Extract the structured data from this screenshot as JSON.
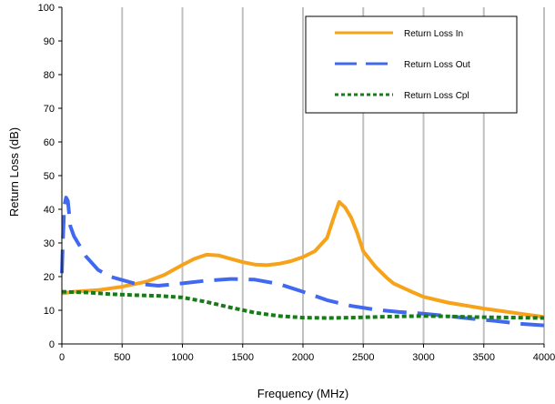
{
  "chart_data": {
    "type": "line",
    "title": "",
    "xlabel": "Frequency (MHz)",
    "ylabel": "Return Loss (dB)",
    "xlim": [
      0,
      4000
    ],
    "ylim": [
      0,
      100
    ],
    "xticks": [
      0,
      500,
      1000,
      1500,
      2000,
      2500,
      3000,
      3500,
      4000
    ],
    "yticks": [
      0,
      10,
      20,
      30,
      40,
      50,
      60,
      70,
      80,
      90,
      100
    ],
    "grid": "vertical",
    "legend_position": "top-right",
    "series": [
      {
        "name": "Return Loss In",
        "color": "#f7a21b",
        "dash": "solid",
        "points": [
          [
            0,
            15
          ],
          [
            100,
            15.5
          ],
          [
            300,
            16
          ],
          [
            500,
            17
          ],
          [
            700,
            18.5
          ],
          [
            850,
            20.5
          ],
          [
            1000,
            23.5
          ],
          [
            1100,
            25.3
          ],
          [
            1200,
            26.5
          ],
          [
            1300,
            26.3
          ],
          [
            1400,
            25.3
          ],
          [
            1500,
            24.3
          ],
          [
            1600,
            23.6
          ],
          [
            1700,
            23.4
          ],
          [
            1800,
            23.8
          ],
          [
            1900,
            24.6
          ],
          [
            2000,
            25.8
          ],
          [
            2100,
            27.6
          ],
          [
            2200,
            31.5
          ],
          [
            2250,
            37
          ],
          [
            2300,
            42.2
          ],
          [
            2350,
            40.5
          ],
          [
            2400,
            37.5
          ],
          [
            2450,
            33
          ],
          [
            2500,
            27.5
          ],
          [
            2600,
            23
          ],
          [
            2700,
            19.5
          ],
          [
            2750,
            18
          ],
          [
            2900,
            15.5
          ],
          [
            3000,
            14
          ],
          [
            3200,
            12.3
          ],
          [
            3500,
            10.5
          ],
          [
            3800,
            9
          ],
          [
            4000,
            8
          ]
        ]
      },
      {
        "name": "Return Loss Out",
        "color": "#4169f0",
        "dash": "long-dash",
        "points": [
          [
            0,
            21
          ],
          [
            10,
            32
          ],
          [
            20,
            41
          ],
          [
            35,
            43.5
          ],
          [
            50,
            42.5
          ],
          [
            70,
            35
          ],
          [
            100,
            32
          ],
          [
            150,
            29
          ],
          [
            200,
            26
          ],
          [
            300,
            22
          ],
          [
            400,
            20
          ],
          [
            600,
            18
          ],
          [
            800,
            17.3
          ],
          [
            1000,
            18
          ],
          [
            1200,
            18.8
          ],
          [
            1400,
            19.3
          ],
          [
            1600,
            19.1
          ],
          [
            1800,
            17.8
          ],
          [
            2000,
            15.5
          ],
          [
            2200,
            13
          ],
          [
            2400,
            11.3
          ],
          [
            2600,
            10.2
          ],
          [
            2800,
            9.5
          ],
          [
            3000,
            9
          ],
          [
            3200,
            8.3
          ],
          [
            3400,
            7.5
          ],
          [
            3600,
            6.8
          ],
          [
            3800,
            6
          ],
          [
            4000,
            5.5
          ]
        ]
      },
      {
        "name": "Return Loss Cpl",
        "color": "#1a7a1a",
        "dash": "dotted",
        "points": [
          [
            0,
            15.5
          ],
          [
            200,
            15.3
          ],
          [
            400,
            14.8
          ],
          [
            600,
            14.5
          ],
          [
            800,
            14.3
          ],
          [
            1000,
            13.8
          ],
          [
            1200,
            12.5
          ],
          [
            1400,
            10.8
          ],
          [
            1600,
            9.3
          ],
          [
            1800,
            8.3
          ],
          [
            2000,
            7.8
          ],
          [
            2200,
            7.7
          ],
          [
            2400,
            7.8
          ],
          [
            2600,
            8
          ],
          [
            2800,
            8.2
          ],
          [
            3000,
            8.3
          ],
          [
            3200,
            8.2
          ],
          [
            3400,
            8
          ],
          [
            3600,
            7.9
          ],
          [
            3800,
            7.8
          ],
          [
            4000,
            7.7
          ]
        ]
      }
    ]
  }
}
